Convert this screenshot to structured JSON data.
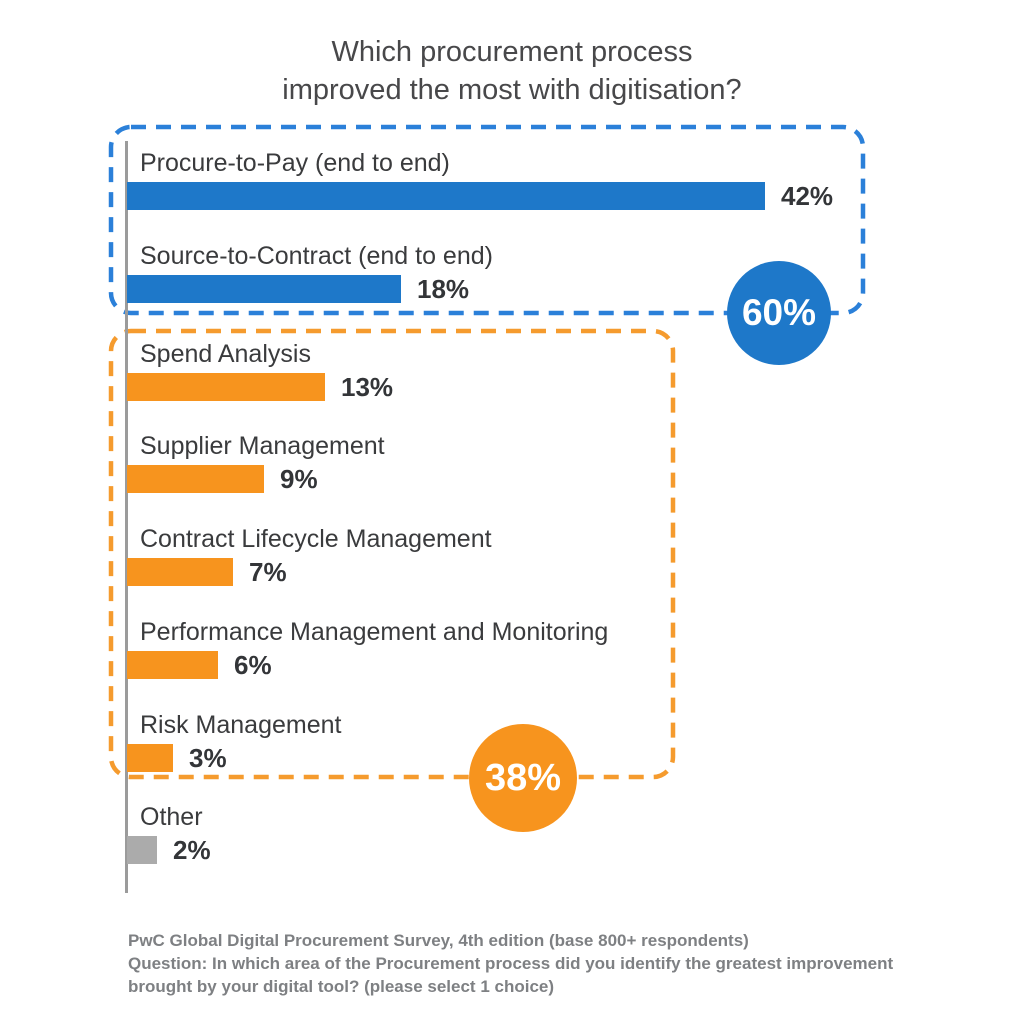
{
  "title": {
    "line1": "Which procurement process",
    "line2": "improved the most with digitisation?"
  },
  "chart_data": {
    "type": "bar",
    "orientation": "horizontal",
    "title": "Which procurement process improved the most with digitisation?",
    "value_unit": "%",
    "xlim": [
      0,
      50
    ],
    "grid": false,
    "legend": false,
    "categories": [
      "Procure-to-Pay (end to end)",
      "Source-to-Contract (end to end)",
      "Spend Analysis",
      "Supplier Management",
      "Contract Lifecycle Management",
      "Performance Management and Monitoring",
      "Risk Management",
      "Other"
    ],
    "values": [
      42,
      18,
      13,
      9,
      7,
      6,
      3,
      2
    ],
    "rows": [
      {
        "label": "Procure-to-Pay (end to end)",
        "value": 42,
        "value_label": "42%",
        "color": "#1e78c9",
        "group": "end_to_end"
      },
      {
        "label": "Source-to-Contract (end to end)",
        "value": 18,
        "value_label": "18%",
        "color": "#1e78c9",
        "group": "end_to_end"
      },
      {
        "label": "Spend Analysis",
        "value": 13,
        "value_label": "13%",
        "color": "#f7941e",
        "group": "point_solutions"
      },
      {
        "label": "Supplier Management",
        "value": 9,
        "value_label": "9%",
        "color": "#f7941e",
        "group": "point_solutions"
      },
      {
        "label": "Contract Lifecycle Management",
        "value": 7,
        "value_label": "7%",
        "color": "#f7941e",
        "group": "point_solutions"
      },
      {
        "label": "Performance Management and Monitoring",
        "value": 6,
        "value_label": "6%",
        "color": "#f7941e",
        "group": "point_solutions"
      },
      {
        "label": "Risk Management",
        "value": 3,
        "value_label": "3%",
        "color": "#f7941e",
        "group": "point_solutions"
      },
      {
        "label": "Other",
        "value": 2,
        "value_label": "2%",
        "color": "#ababab",
        "group": "other"
      }
    ],
    "groups": [
      {
        "id": "end_to_end",
        "badge_label": "60%",
        "badge_value": 60,
        "color": "#1e78c9",
        "dash_color": "#2b80d9"
      },
      {
        "id": "point_solutions",
        "badge_label": "38%",
        "badge_value": 38,
        "color": "#f7941e",
        "dash_color": "#f59b2e"
      }
    ]
  },
  "footer": {
    "line1": "PwC Global Digital Procurement Survey, 4th edition (base 800+ respondents)",
    "line2": "Question: In which area of the Procurement process did you identify the greatest improvement",
    "line3": "brought by your digital tool? (please select 1 choice)"
  },
  "colors": {
    "bar_blue": "#1e78c9",
    "bar_orange": "#f7941e",
    "bar_gray": "#ababab",
    "dash_blue": "#2b80d9",
    "dash_orange": "#f59b2e",
    "axis_gray": "#9b9b9b",
    "label_text": "#3a3b3d",
    "title_text": "#48484a",
    "footer_text": "#7e8083",
    "badge_text": "#ffffff"
  }
}
